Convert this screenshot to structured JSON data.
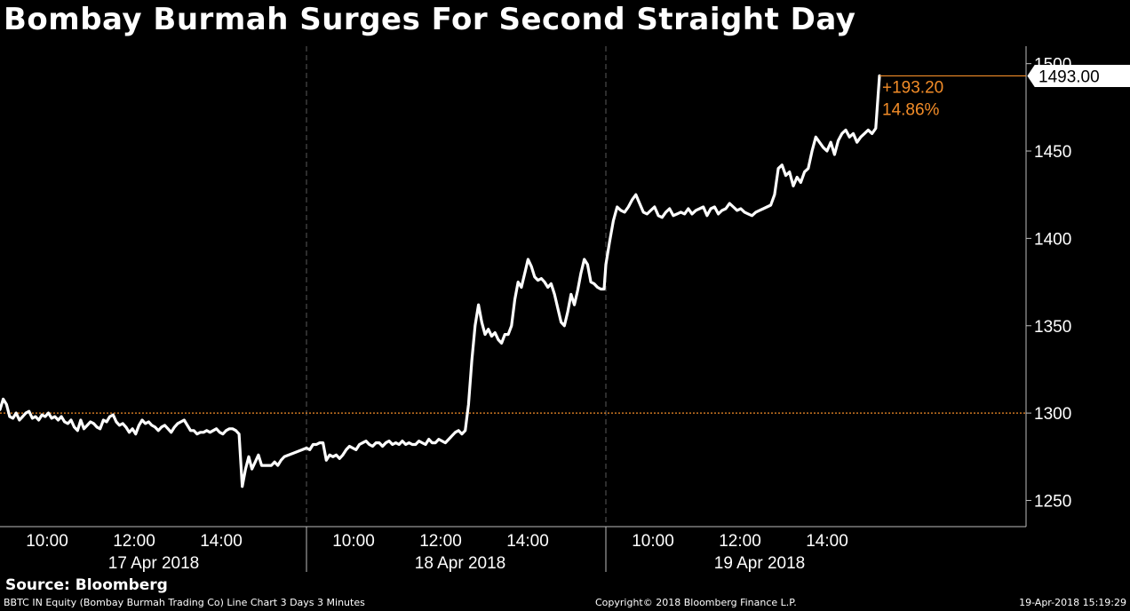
{
  "title": "Bombay Burmah Surges For Second Straight Day",
  "source": "Source: Bloomberg",
  "footer": {
    "left": "BBTC IN Equity (Bombay Burmah Trading Co) Line Chart 3 Days 3 Minutes",
    "center": "Copyright© 2018 Bloomberg Finance L.P.",
    "right": "19-Apr-2018 15:19:29"
  },
  "colors": {
    "background": "#000000",
    "line": "#ffffff",
    "accent": "#f28c28",
    "grid": "#5a5a5a"
  },
  "chart_data": {
    "type": "line",
    "ylim": [
      1235,
      1510
    ],
    "ymarker": 1500,
    "yticks": [
      1250,
      1300,
      1350,
      1400,
      1450
    ],
    "reference_value": 1300,
    "last_value": "1493.00",
    "change": "+193.20",
    "change_pct": "14.86%",
    "days": [
      {
        "label": "17 Apr 2018",
        "time_labels": [
          "10:00",
          "12:00",
          "14:00"
        ]
      },
      {
        "label": "18 Apr 2018",
        "time_labels": [
          "10:00",
          "12:00",
          "14:00"
        ]
      },
      {
        "label": "19 Apr 2018",
        "time_labels": [
          "10:00",
          "12:00",
          "14:00"
        ]
      }
    ],
    "series": [
      {
        "values": [
          [
            1302,
            1308,
            1305,
            1298,
            1297,
            1300,
            1296,
            1298,
            1300,
            1301,
            1297,
            1298,
            1296,
            1299,
            1298,
            1300,
            1297,
            1298,
            1296,
            1298,
            1295,
            1294,
            1296,
            1292,
            1290,
            1296,
            1291,
            1293,
            1295,
            1294,
            1292,
            1291,
            1296,
            1295,
            1298,
            1299,
            1295,
            1293,
            1294,
            1292,
            1289,
            1291,
            1288,
            1293,
            1296,
            1294,
            1295,
            1293,
            1292,
            1290,
            1292,
            1293,
            1291,
            1289,
            1292,
            1294,
            1295,
            1296,
            1293,
            1290,
            1290,
            1288,
            1289,
            1289,
            1290,
            1289,
            1290,
            1291,
            1289,
            1288,
            1290,
            1291,
            1291,
            1290,
            1288,
            1258,
            1268,
            1275,
            1268,
            1272,
            1276,
            1270,
            1270,
            1270,
            1270,
            1272,
            1270,
            1273,
            1275
          ],
          [
            1280,
            1279,
            1282,
            1282,
            1283,
            1283,
            1273,
            1276,
            1275,
            1276,
            1274,
            1276,
            1279,
            1281,
            1280,
            1279,
            1282,
            1283,
            1284,
            1282,
            1281,
            1283,
            1283,
            1281,
            1283,
            1284,
            1282,
            1283,
            1282,
            1284,
            1282,
            1283,
            1282,
            1282,
            1284,
            1283,
            1282,
            1285,
            1283,
            1283,
            1285,
            1284,
            1283,
            1285,
            1287,
            1289,
            1290,
            1288,
            1290,
            1305,
            1330,
            1350,
            1362,
            1352,
            1345,
            1348,
            1344,
            1346,
            1342,
            1340,
            1345,
            1345,
            1350,
            1365,
            1375,
            1372,
            1380,
            1388,
            1384,
            1378,
            1376,
            1377,
            1375,
            1372,
            1374,
            1368,
            1360,
            1352,
            1350,
            1358,
            1368,
            1362,
            1370,
            1380,
            1388,
            1385,
            1375,
            1374,
            1372,
            1371,
            1371
          ],
          [
            1385,
            1398,
            1410,
            1418,
            1416,
            1415,
            1418,
            1422,
            1425,
            1420,
            1415,
            1414,
            1416,
            1418,
            1413,
            1412,
            1415,
            1417,
            1413,
            1414,
            1415,
            1414,
            1417,
            1414,
            1416,
            1417,
            1418,
            1413,
            1417,
            1418,
            1414,
            1416,
            1417,
            1420,
            1418,
            1416,
            1417,
            1415,
            1414,
            1413,
            1415,
            1416,
            1417,
            1418,
            1419,
            1425,
            1440,
            1442,
            1436,
            1438,
            1430,
            1435,
            1432,
            1438,
            1440,
            1450,
            1458,
            1455,
            1452,
            1450,
            1455,
            1448,
            1456,
            1460,
            1462,
            1458,
            1460,
            1455,
            1458,
            1460,
            1462,
            1460,
            1463,
            1493
          ]
        ]
      }
    ]
  }
}
